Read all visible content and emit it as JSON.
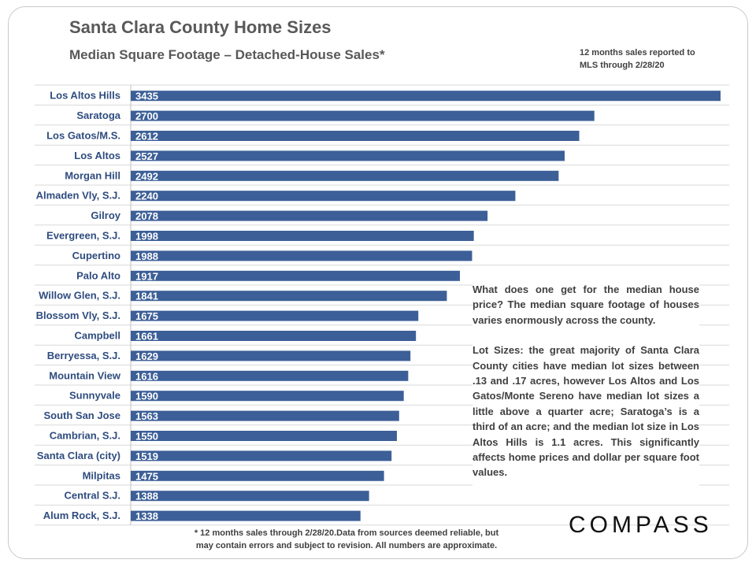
{
  "header": {
    "title": "Santa Clara County Home Sizes",
    "subtitle": "Median Square Footage – Detached-House Sales*",
    "note_line1": "12 months sales reported to",
    "note_line2": "MLS through 2/28/20"
  },
  "chart_data": {
    "type": "bar",
    "orientation": "horizontal",
    "title": "Santa Clara County Home Sizes",
    "subtitle": "Median Square Footage – Detached-House Sales*",
    "xlabel": "",
    "ylabel": "",
    "xlim": [
      0,
      3435
    ],
    "grid": true,
    "categories": [
      "Los Altos Hills",
      "Saratoga",
      "Los Gatos/M.S.",
      "Los Altos",
      "Morgan Hill",
      "Almaden Vly, S.J.",
      "Gilroy",
      "Evergreen, S.J.",
      "Cupertino",
      "Palo Alto",
      "Willow Glen, S.J.",
      "Blossom Vly, S.J.",
      "Campbell",
      "Berryessa, S.J.",
      "Mountain View",
      "Sunnyvale",
      "South San Jose",
      "Cambrian, S.J.",
      "Santa Clara (city)",
      "Milpitas",
      "Central S.J.",
      "Alum Rock, S.J."
    ],
    "values": [
      3435,
      2700,
      2612,
      2527,
      2492,
      2240,
      2078,
      1998,
      1988,
      1917,
      1841,
      1675,
      1661,
      1629,
      1616,
      1590,
      1563,
      1550,
      1519,
      1475,
      1388,
      1338
    ],
    "bar_color": "#3c5f98"
  },
  "textbox": {
    "para1": "What does one get for the median house price? The median square footage of houses varies enormously across the county.",
    "para2": "Lot Sizes: the great majority of Santa Clara County cities have median lot sizes between .13 and .17 acres, however Los Altos and Los Gatos/Monte Sereno have median lot sizes a little above a quarter acre; Saratoga’s is a third of an acre; and the median lot size in Los Altos Hills is 1.1 acres. This significantly affects home prices and dollar per square foot values."
  },
  "footer": {
    "line1": "* 12 months sales through 2/28/20.Data from sources deemed reliable, but",
    "line2": "may contain errors and subject to revision. All numbers are approximate."
  },
  "logo": {
    "text": "COMPASS"
  }
}
